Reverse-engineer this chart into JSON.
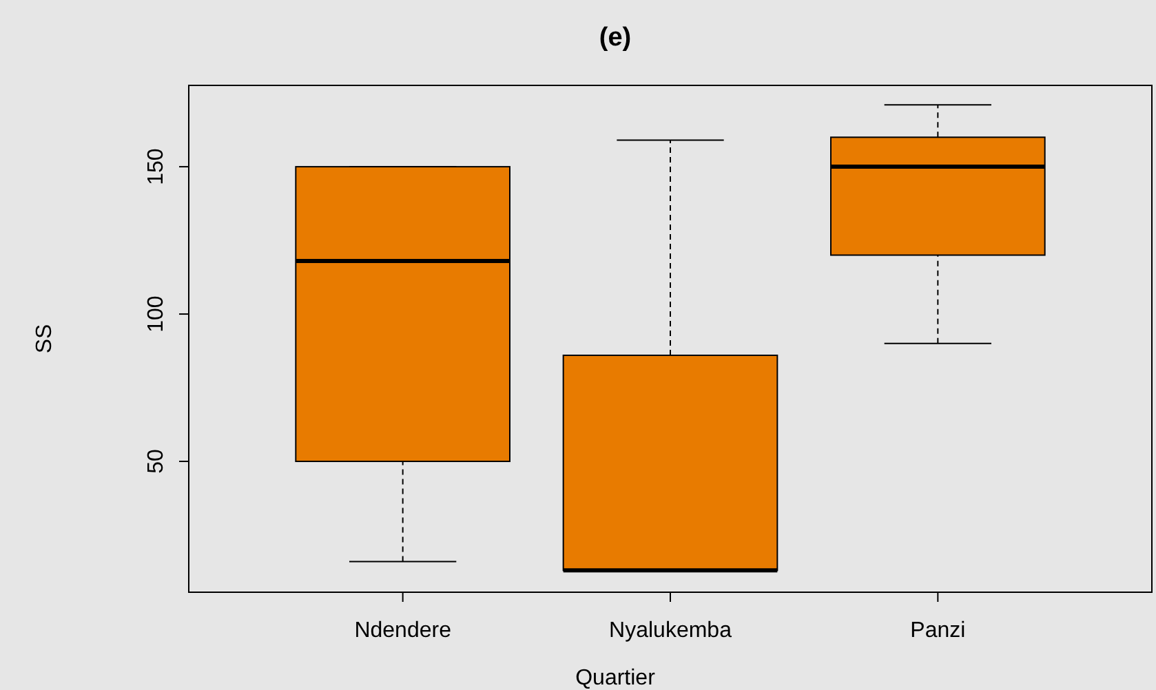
{
  "chart_data": {
    "type": "box",
    "title": "(e)",
    "xlabel": "Quartier",
    "ylabel": "SS",
    "categories": [
      "Ndendere",
      "Nyalukemba",
      "Panzi"
    ],
    "boxes": [
      {
        "low": 16,
        "q1": 50,
        "median": 118,
        "q3": 150,
        "high": 150
      },
      {
        "low": 13,
        "q1": 13,
        "median": 13,
        "q3": 86,
        "high": 159
      },
      {
        "low": 90,
        "q1": 120,
        "median": 150,
        "q3": 160,
        "high": 171
      }
    ],
    "color": "#e87b00",
    "ylim": [
      5.6,
      177.6
    ],
    "yticks": [
      50,
      100,
      150
    ],
    "grid": false
  }
}
